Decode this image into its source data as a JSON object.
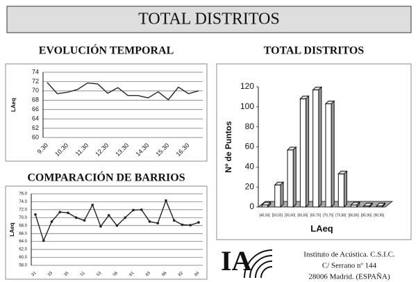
{
  "header": {
    "title": "TOTAL DISTRITOS"
  },
  "chart_data": [
    {
      "type": "line",
      "title": "EVOLUCIÓN TEMPORAL",
      "y_label": "LAeq",
      "categories": [
        "9.30",
        null,
        "10.30",
        null,
        "11.30",
        null,
        "12.30",
        null,
        "13.30",
        null,
        "14.30",
        null,
        "15.30",
        null,
        "16.30",
        null
      ],
      "values": [
        71.8,
        69.4,
        69.7,
        70.3,
        71.7,
        71.5,
        69.5,
        70.7,
        69.0,
        69.0,
        68.5,
        69.8,
        68.1,
        70.8,
        69.4,
        70.0
      ],
      "color": "#222222",
      "ylim": [
        60,
        74
      ],
      "yticks": [
        60,
        62,
        64,
        66,
        68,
        70,
        72,
        74
      ],
      "grid": true
    },
    {
      "type": "bar3d",
      "title": "TOTAL DISTRITOS",
      "y_label": "Nº de Puntos",
      "x_label": "LAeq",
      "categories": [
        "[45,50[",
        "[50,55[",
        "[55,60[",
        "[60,65[",
        "[65,70[",
        "[70,75[",
        "[75,80[",
        "[80,85[",
        "[85,90[",
        "[90,95["
      ],
      "values": [
        2,
        22,
        57,
        108,
        117,
        103,
        33,
        2,
        1,
        1
      ],
      "color": "#ffffff",
      "ylim": [
        0,
        120
      ],
      "yticks": [
        0,
        20,
        40,
        60,
        80,
        100,
        120
      ],
      "grid": false
    },
    {
      "type": "line",
      "title": "COMPARACIÓN DE BARRIOS",
      "y_label": "LAeq",
      "categories": [
        "31",
        null,
        "33",
        null,
        "35",
        null,
        "51",
        null,
        "53",
        null,
        "56",
        null,
        "61",
        null,
        "63",
        null,
        "66",
        null,
        "82",
        null,
        "84"
      ],
      "values": [
        70.8,
        64.2,
        69.0,
        71.4,
        71.2,
        70.0,
        69.3,
        73.2,
        67.8,
        70.6,
        68.0,
        70.0,
        71.9,
        72.0,
        69.0,
        68.6,
        74.3,
        69.3,
        68.2,
        68.1,
        68.8
      ],
      "color": "#222222",
      "ylim": [
        58,
        76
      ],
      "yticks": [
        {
          "value": 58,
          "label": "58.0"
        },
        {
          "value": 60,
          "label": "60.0"
        },
        {
          "value": 62,
          "label": "62.0"
        },
        {
          "value": 64,
          "label": "64.0"
        },
        {
          "value": 66,
          "label": "66.0"
        },
        {
          "value": 68,
          "label": "68.0"
        },
        {
          "value": 70,
          "label": "70.0"
        },
        {
          "value": 72,
          "label": "72.0"
        },
        {
          "value": 74,
          "label": "74.0"
        },
        {
          "value": 76,
          "label": "76.0"
        }
      ],
      "grid": true
    }
  ],
  "institute": {
    "logo": "IA",
    "lines": [
      "Instituto de Acústica. C.S.I.C.",
      "C/ Serrano nº 144",
      "28006 Madrid. (ESPAÑA)"
    ]
  }
}
